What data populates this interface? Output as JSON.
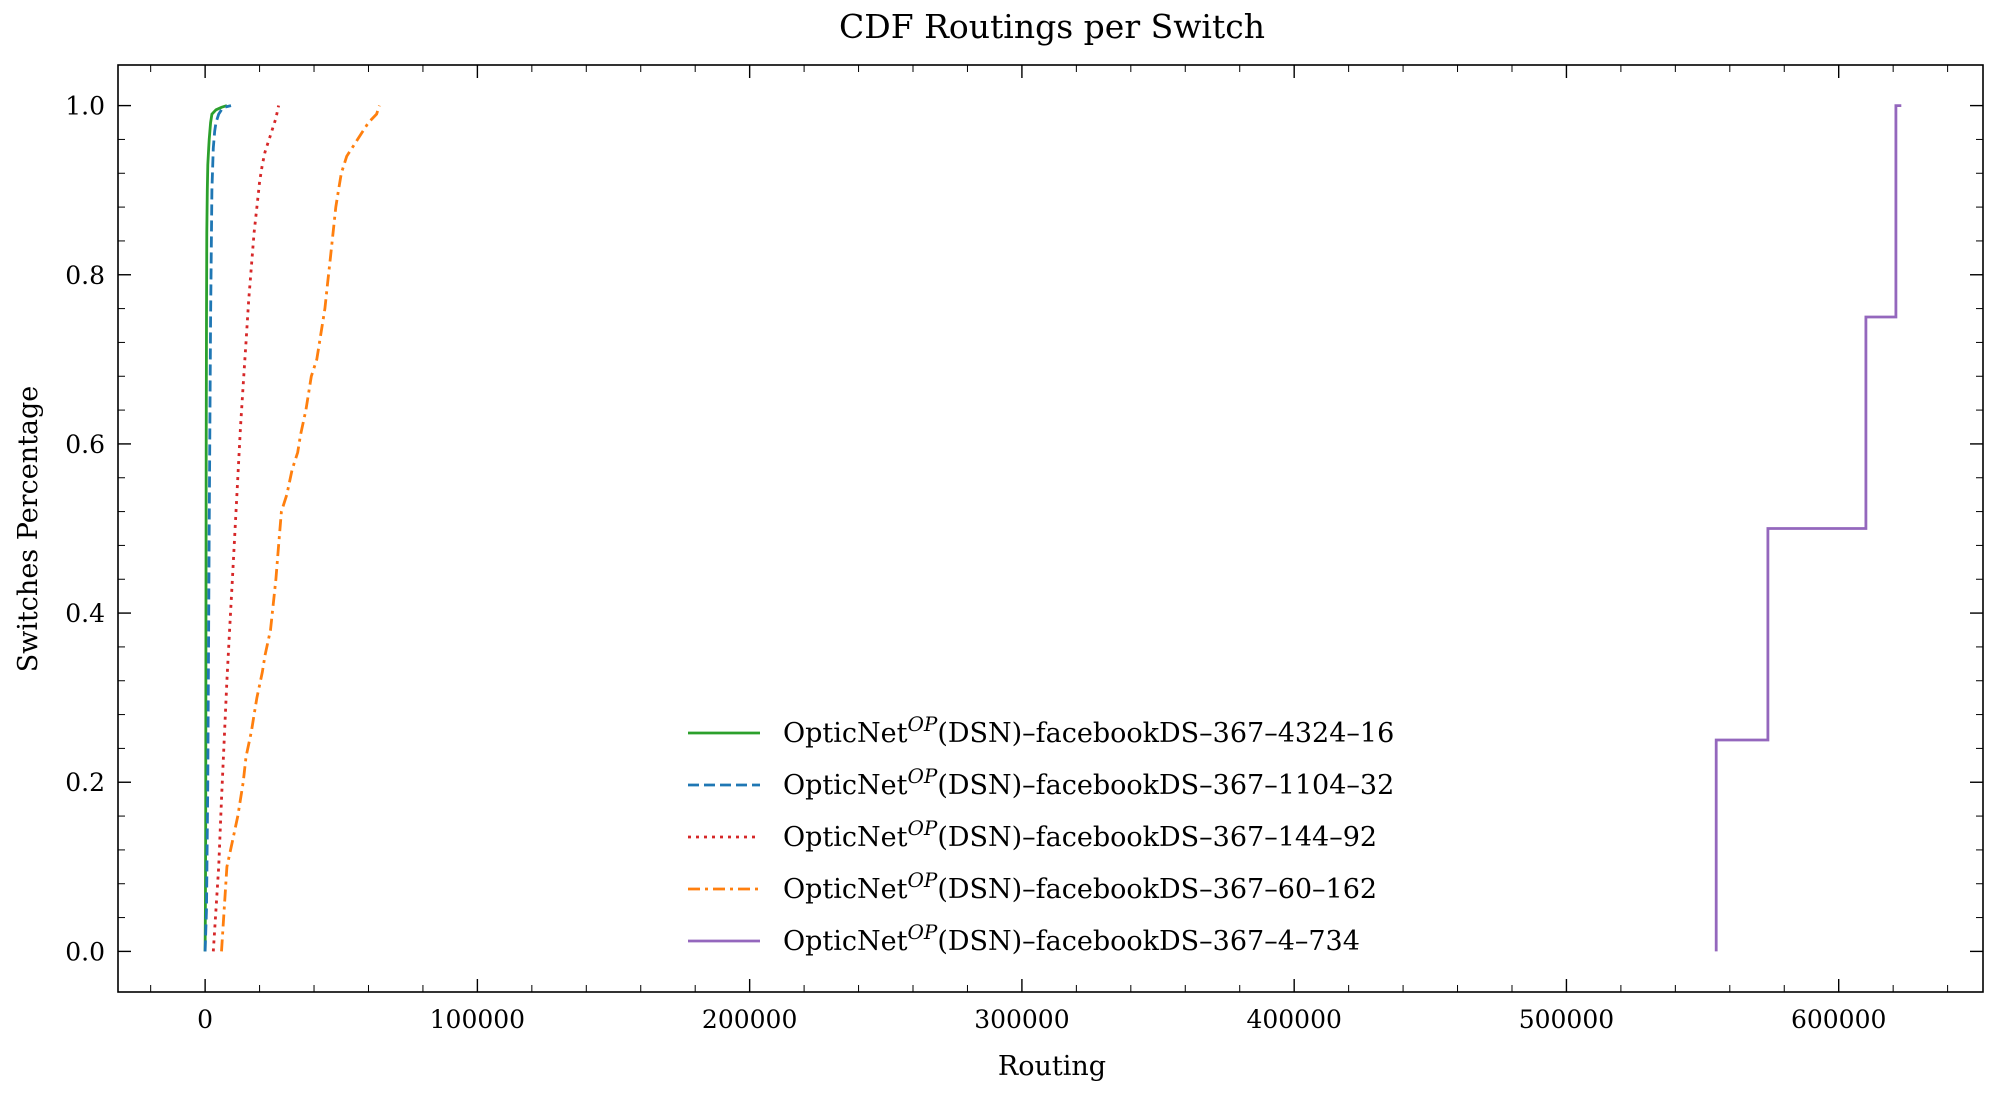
{
  "chart_data": {
    "type": "line",
    "title": "CDF Routings per Switch",
    "xlabel": "Routing",
    "ylabel": "Switches Percentage",
    "xlim": [
      -32000,
      653000
    ],
    "ylim": [
      -0.048,
      1.048
    ],
    "xticks": [
      0,
      100000,
      200000,
      300000,
      400000,
      500000,
      600000
    ],
    "xtick_labels": [
      "0",
      "100000",
      "200000",
      "300000",
      "400000",
      "500000",
      "600000"
    ],
    "yticks": [
      0.0,
      0.2,
      0.4,
      0.6,
      0.8,
      1.0
    ],
    "ytick_labels": [
      "0.0",
      "0.2",
      "0.4",
      "0.6",
      "0.8",
      "1.0"
    ],
    "grid": false,
    "legend_position": "lower-center",
    "series": [
      {
        "legend": {
          "prefix": "OpticNet",
          "sup": "OP",
          "suffix": "(DSN)–facebookDS–367–4324–16"
        },
        "color": "#2ca02c",
        "style": "solid",
        "x": [
          0,
          100,
          200,
          300,
          400,
          500,
          600,
          800,
          1000,
          1300,
          1500,
          2000,
          2500,
          4000,
          6000,
          8000
        ],
        "y": [
          0.0,
          0.05,
          0.15,
          0.35,
          0.6,
          0.75,
          0.85,
          0.9,
          0.93,
          0.95,
          0.96,
          0.98,
          0.99,
          0.995,
          0.998,
          1.0
        ]
      },
      {
        "legend": {
          "prefix": "OpticNet",
          "sup": "OP",
          "suffix": "(DSN)–facebookDS–367–1104–32"
        },
        "color": "#1f77b4",
        "style": "dashed",
        "x": [
          0,
          500,
          1000,
          1500,
          2000,
          2500,
          3000,
          3500,
          4000,
          5000,
          6000,
          7000,
          9500
        ],
        "y": [
          0.0,
          0.05,
          0.2,
          0.5,
          0.75,
          0.9,
          0.95,
          0.97,
          0.98,
          0.99,
          0.995,
          0.998,
          1.0
        ]
      },
      {
        "legend": {
          "prefix": "OpticNet",
          "sup": "OP",
          "suffix": "(DSN)–facebookDS–367–144–92"
        },
        "color": "#d62728",
        "style": "dotted",
        "x": [
          3000,
          4000,
          5000,
          6000,
          7000,
          8000,
          9000,
          10000,
          11000,
          12000,
          13000,
          14000,
          15000,
          16000,
          17000,
          18000,
          19000,
          20000,
          21000,
          22000,
          23000,
          24000,
          25000,
          26000,
          27000
        ],
        "y": [
          0.0,
          0.05,
          0.1,
          0.18,
          0.25,
          0.32,
          0.38,
          0.44,
          0.5,
          0.56,
          0.62,
          0.67,
          0.72,
          0.77,
          0.81,
          0.85,
          0.88,
          0.91,
          0.93,
          0.945,
          0.955,
          0.965,
          0.975,
          0.985,
          1.0
        ]
      },
      {
        "legend": {
          "prefix": "OpticNet",
          "sup": "OP",
          "suffix": "(DSN)–facebookDS–367–60–162"
        },
        "color": "#ff7f0e",
        "style": "dashdot",
        "x": [
          6000,
          7000,
          8000,
          10000,
          12000,
          14000,
          15000,
          17000,
          18000,
          19000,
          21000,
          22000,
          24000,
          25000,
          26000,
          27000,
          28000,
          30000,
          32000,
          34000,
          35000,
          37000,
          38000,
          39000,
          41000,
          42000,
          43000,
          44000,
          45000,
          46000,
          47000,
          48000,
          49000,
          50000,
          52000,
          56000,
          60000,
          63000,
          64000
        ],
        "y": [
          0.0,
          0.05,
          0.1,
          0.13,
          0.16,
          0.2,
          0.23,
          0.26,
          0.28,
          0.3,
          0.33,
          0.35,
          0.38,
          0.41,
          0.44,
          0.48,
          0.52,
          0.54,
          0.57,
          0.59,
          0.61,
          0.64,
          0.66,
          0.68,
          0.7,
          0.72,
          0.74,
          0.76,
          0.79,
          0.82,
          0.85,
          0.88,
          0.9,
          0.92,
          0.94,
          0.96,
          0.98,
          0.99,
          1.0
        ]
      },
      {
        "legend": {
          "prefix": "OpticNet",
          "sup": "OP",
          "suffix": "(DSN)–facebookDS–367–4–734"
        },
        "color": "#9467bd",
        "style": "solid",
        "x": [
          555000,
          555000,
          574000,
          574000,
          610000,
          610000,
          621000,
          621000,
          623000
        ],
        "y": [
          0.0,
          0.25,
          0.25,
          0.5,
          0.5,
          0.75,
          0.75,
          1.0,
          1.0
        ]
      }
    ]
  }
}
